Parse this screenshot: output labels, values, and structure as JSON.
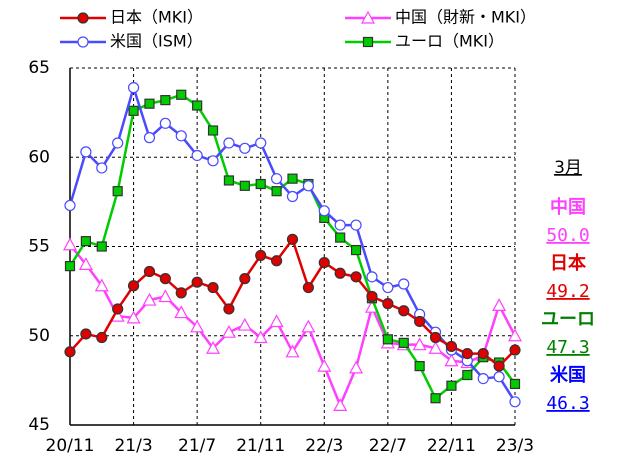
{
  "chart_data": {
    "type": "line",
    "categories": [
      "20/11",
      null,
      null,
      null,
      "21/3",
      null,
      null,
      null,
      "21/7",
      null,
      null,
      null,
      "21/11",
      null,
      null,
      null,
      "22/3",
      null,
      null,
      null,
      "22/7",
      null,
      null,
      null,
      "22/11",
      null,
      null,
      null,
      "23/3"
    ],
    "series": [
      {
        "name": "日本（MKI）",
        "color": "#e00000",
        "marker": "circle",
        "marker_fill": "#e00000",
        "values": [
          49.1,
          50.1,
          49.9,
          51.5,
          52.8,
          53.6,
          53.2,
          52.4,
          53.0,
          52.7,
          51.5,
          53.2,
          54.5,
          54.2,
          55.4,
          52.7,
          54.1,
          53.5,
          53.3,
          52.2,
          51.8,
          51.4,
          50.8,
          49.9,
          49.4,
          49.0,
          49.0,
          48.3,
          49.2
        ]
      },
      {
        "name": "中国（財新・MKI）",
        "color": "#ff40ff",
        "marker": "triangle",
        "marker_fill": "#ffffff",
        "values": [
          55.1,
          54.0,
          52.8,
          51.1,
          51.0,
          52.0,
          52.2,
          51.3,
          50.5,
          49.3,
          50.2,
          50.6,
          49.9,
          50.8,
          49.1,
          50.5,
          48.3,
          46.1,
          48.2,
          51.6,
          49.6,
          49.5,
          49.5,
          49.3,
          48.6,
          48.5,
          48.9,
          51.7,
          50.0
        ]
      },
      {
        "name": "米国（ISM）",
        "color": "#4a4aff",
        "marker": "circle",
        "marker_fill": "#ffffff",
        "values": [
          57.3,
          60.3,
          59.4,
          60.8,
          63.9,
          61.1,
          61.9,
          61.2,
          60.1,
          59.8,
          60.8,
          60.5,
          60.8,
          58.8,
          57.8,
          58.4,
          57.0,
          56.2,
          56.2,
          53.3,
          52.7,
          52.9,
          51.2,
          50.2,
          49.2,
          48.6,
          47.6,
          47.7,
          46.3
        ]
      },
      {
        "name": "ユーロ（MKI）",
        "color": "#00cc00",
        "marker": "square",
        "marker_fill": "#00cc00",
        "values": [
          53.9,
          55.3,
          55.0,
          58.1,
          62.6,
          63.0,
          63.2,
          63.5,
          62.9,
          61.5,
          58.7,
          58.4,
          58.5,
          58.1,
          58.8,
          58.5,
          56.6,
          55.5,
          54.8,
          52.1,
          49.8,
          49.6,
          48.3,
          46.5,
          47.2,
          47.8,
          48.8,
          48.5,
          47.3
        ]
      }
    ],
    "ylim": [
      45,
      65
    ],
    "yticks": [
      45,
      50,
      55,
      60,
      65
    ],
    "grid": true,
    "latest": {
      "title": "3月",
      "items": [
        {
          "name": "中国",
          "label": "50.0",
          "color": "#ff40ff"
        },
        {
          "name": "日本",
          "label": "49.2",
          "color": "#e00000"
        },
        {
          "name": "ユーロ",
          "label": "47.3",
          "color": "#008000"
        },
        {
          "name": "米国",
          "label": "46.3",
          "color": "#0000ff"
        }
      ]
    }
  }
}
